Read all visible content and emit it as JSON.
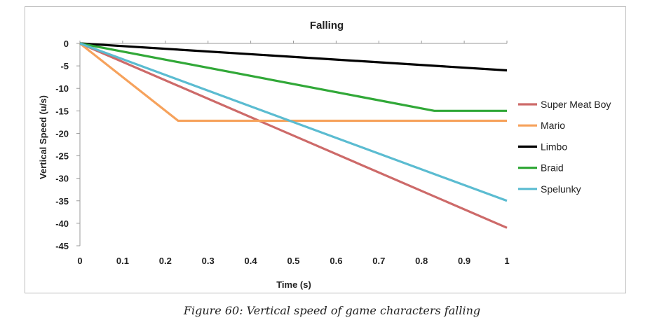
{
  "caption": "Figure 60: Vertical speed of game characters falling",
  "chart_data": {
    "type": "line",
    "title": "Falling",
    "xlabel": "Time (s)",
    "ylabel": "Vertical Speed (u/s)",
    "xlim": [
      0,
      1
    ],
    "ylim": [
      -45,
      0
    ],
    "x_ticks": [
      "0",
      "0.1",
      "0.2",
      "0.3",
      "0.4",
      "0.5",
      "0.6",
      "0.7",
      "0.8",
      "0.9",
      "1"
    ],
    "y_ticks": [
      "0",
      "-5",
      "-10",
      "-15",
      "-20",
      "-25",
      "-30",
      "-35",
      "-40",
      "-45"
    ],
    "grid": false,
    "legend_position": "right",
    "series": [
      {
        "name": "Super Meat Boy",
        "color": "#cd6a69",
        "points": [
          [
            0,
            0
          ],
          [
            1,
            -41
          ]
        ]
      },
      {
        "name": "Mario",
        "color": "#f6a25c",
        "points": [
          [
            0,
            0
          ],
          [
            0.23,
            -17.2
          ],
          [
            1,
            -17.2
          ]
        ]
      },
      {
        "name": "Limbo",
        "color": "#000000",
        "points": [
          [
            0,
            0
          ],
          [
            1,
            -6
          ]
        ]
      },
      {
        "name": "Braid",
        "color": "#31a838",
        "points": [
          [
            0,
            0
          ],
          [
            0.83,
            -15
          ],
          [
            1,
            -15
          ]
        ]
      },
      {
        "name": "Spelunky",
        "color": "#5bbcd1",
        "points": [
          [
            0,
            0
          ],
          [
            1,
            -35
          ]
        ]
      }
    ]
  }
}
